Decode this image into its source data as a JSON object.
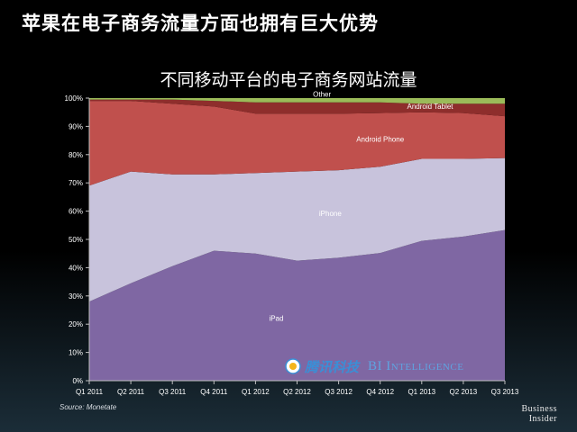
{
  "slide": {
    "title": "苹果在电子商务流量方面也拥有巨大优势",
    "source": "Source: Monetate",
    "logo_line1": "Business",
    "logo_line2": "Insider"
  },
  "watermark": {
    "tencent": "腾讯科技",
    "bi": "BI Intelligence"
  },
  "chart_data": {
    "type": "area",
    "stacked": true,
    "title": "不同移动平台的电子商务网站流量",
    "xlabel": "",
    "ylabel": "",
    "ylim": [
      0,
      100
    ],
    "y_ticks": [
      "0%",
      "10%",
      "20%",
      "30%",
      "40%",
      "50%",
      "60%",
      "70%",
      "80%",
      "90%",
      "100%"
    ],
    "categories": [
      "Q1 2011",
      "Q2 2011",
      "Q3 2011",
      "Q4 2011",
      "Q1 2012",
      "Q2 2012",
      "Q3 2012",
      "Q4 2012",
      "Q1 2013",
      "Q2 2013",
      "Q3 2013"
    ],
    "series": [
      {
        "name": "iPad",
        "color": "#7f67a3",
        "values": [
          28,
          34.5,
          40.5,
          46,
          45,
          42.5,
          43.5,
          45.2,
          49.5,
          51,
          53.3
        ]
      },
      {
        "name": "iPhone",
        "color": "#c8c3dc",
        "values": [
          41,
          39.5,
          32.5,
          27,
          28.5,
          31.5,
          31,
          30.5,
          29,
          27.5,
          25.5
        ]
      },
      {
        "name": "Android Phone",
        "color": "#c0504d",
        "values": [
          30,
          25,
          25,
          24,
          21,
          20.5,
          20,
          19,
          16.5,
          16.2,
          14.8
        ]
      },
      {
        "name": "Android Tablet",
        "color": "#8e2e2c",
        "values": [
          0.5,
          0.5,
          1.5,
          2,
          4,
          4,
          4,
          3.8,
          3,
          3.3,
          4.4
        ]
      },
      {
        "name": "Other",
        "color": "#9bbb59",
        "values": [
          0.5,
          0.5,
          0.5,
          1,
          1.5,
          1.5,
          1.5,
          1.5,
          2,
          2,
          2
        ]
      }
    ],
    "grid": false,
    "legend": "inline labels"
  }
}
